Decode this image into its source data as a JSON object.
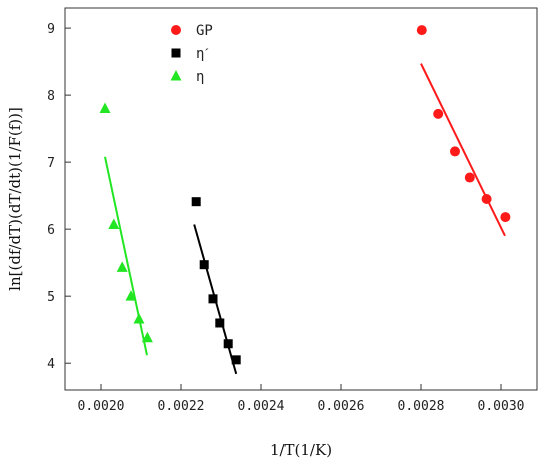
{
  "chart_data": {
    "type": "scatter",
    "xlabel": "1/T(1/K)",
    "ylabel": "ln[(df/dT)(dT/dt)(1/F(f))]",
    "xlim": [
      0.00191,
      0.00309
    ],
    "ylim": [
      3.6,
      9.3
    ],
    "x_ticks": [
      0.002,
      0.0022,
      0.0024,
      0.0026,
      0.0028,
      0.003
    ],
    "x_tick_labels": [
      "0.0020",
      "0.0022",
      "0.0024",
      "0.0026",
      "0.0028",
      "0.0030"
    ],
    "y_ticks": [
      4,
      5,
      6,
      7,
      8,
      9
    ],
    "y_tick_labels": [
      "4",
      "5",
      "6",
      "7",
      "8",
      "9"
    ],
    "grid": false,
    "legend_position": "top-left",
    "series": [
      {
        "name": "GP",
        "marker": "circle",
        "color": "#ff1a1a",
        "x": [
          0.002802,
          0.002843,
          0.002885,
          0.002922,
          0.002964,
          0.003011
        ],
        "y": [
          8.97,
          7.72,
          7.16,
          6.77,
          6.45,
          6.18
        ],
        "fit": {
          "x": [
            0.0028,
            0.00301
          ],
          "y": [
            8.47,
            5.9
          ]
        }
      },
      {
        "name": "ηˊ",
        "marker": "square",
        "color": "#000000",
        "x": [
          0.002238,
          0.002258,
          0.00228,
          0.002297,
          0.002318,
          0.002338
        ],
        "y": [
          6.41,
          5.47,
          4.96,
          4.6,
          4.29,
          4.05
        ],
        "fit": {
          "x": [
            0.002233,
            0.002338
          ],
          "y": [
            6.07,
            3.84
          ]
        }
      },
      {
        "name": "η",
        "marker": "triangle",
        "color": "#22e622",
        "x": [
          0.00201,
          0.002032,
          0.002053,
          0.002075,
          0.002095,
          0.002116
        ],
        "y": [
          7.8,
          6.07,
          5.43,
          5.0,
          4.66,
          4.38
        ],
        "fit": {
          "x": [
            0.00201,
            0.002115
          ],
          "y": [
            7.08,
            4.12
          ]
        }
      }
    ]
  }
}
